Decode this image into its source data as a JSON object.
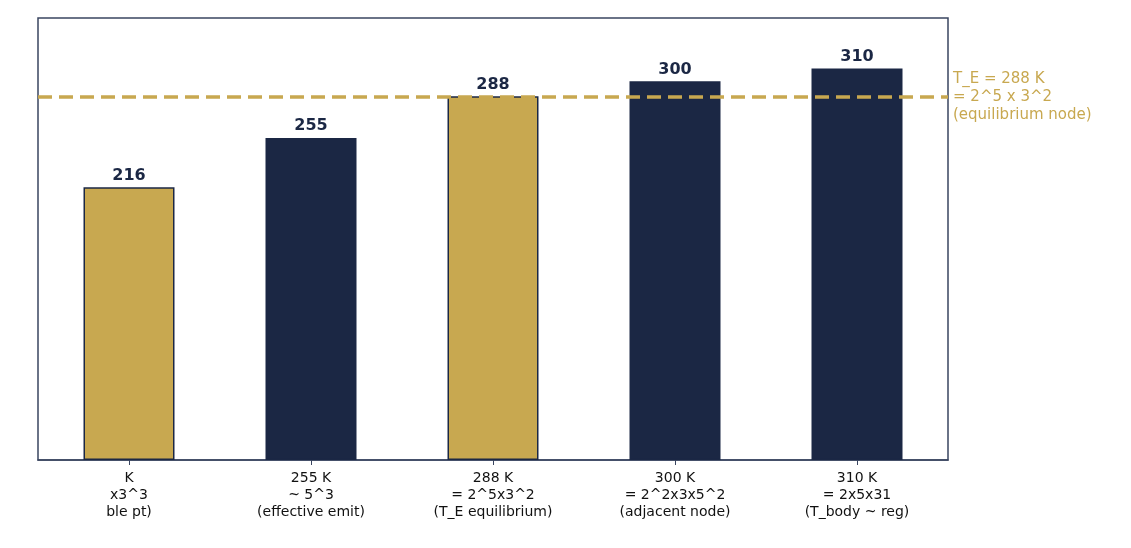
{
  "chart_data": {
    "type": "bar",
    "categories": [
      "K\nx3^3\nble pt)",
      "255 K\n~ 5^3\n(effective emit)",
      "288 K\n= 2^5x3^2\n(T_E equilibrium)",
      "300 K\n= 2^2x3x5^2\n(adjacent node)",
      "310 K\n= 2x5x31\n(T_body ~ reg)"
    ],
    "values": [
      216,
      255,
      288,
      300,
      310
    ],
    "colors": [
      "#c8a850",
      "#1b2744",
      "#c8a850",
      "#1b2744",
      "#1b2744"
    ],
    "data_labels": true,
    "ylim": [
      0,
      350
    ],
    "tick_labels": "x",
    "grid": false,
    "ref_lines": [
      {
        "axis": "y",
        "value": 288,
        "label": "T_E = 288 K\n= 2^5 x 3^2\n(equilibrium node)",
        "color": "#c8a850",
        "line_style": "dashed"
      }
    ]
  }
}
